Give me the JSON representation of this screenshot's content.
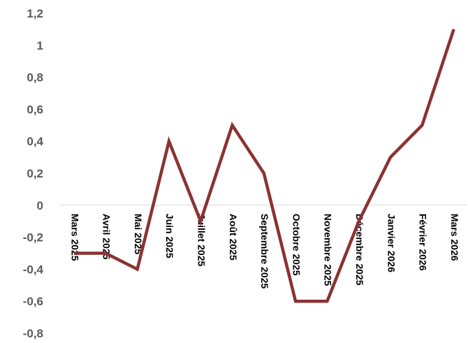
{
  "chart_data": {
    "type": "line",
    "categories": [
      "Mars 2025",
      "Avril 2025",
      "Mai 2025",
      "Juin 2025",
      "Juillet 2025",
      "Août 2025",
      "Septembre 2025",
      "Octobre 2025",
      "Novembre 2025",
      "Décembre 2025",
      "Janvier 2026",
      "Février 2026",
      "Mars 2026"
    ],
    "series": [
      {
        "values": [
          -0.3,
          -0.3,
          -0.4,
          0.4,
          -0.1,
          0.5,
          0.2,
          -0.6,
          -0.6,
          -0.1,
          0.3,
          0.5,
          1.1
        ]
      }
    ],
    "yticks": [
      "1,2",
      "1",
      "0,8",
      "0,6",
      "0,4",
      "0,2",
      "0",
      "-0,2",
      "-0,4",
      "-0,6",
      "-0,8"
    ],
    "ylim": [
      -0.8,
      1.2
    ],
    "grid": false,
    "legend": "none",
    "line_color": "#8b3232",
    "title": "",
    "xlabel": "",
    "ylabel": ""
  }
}
